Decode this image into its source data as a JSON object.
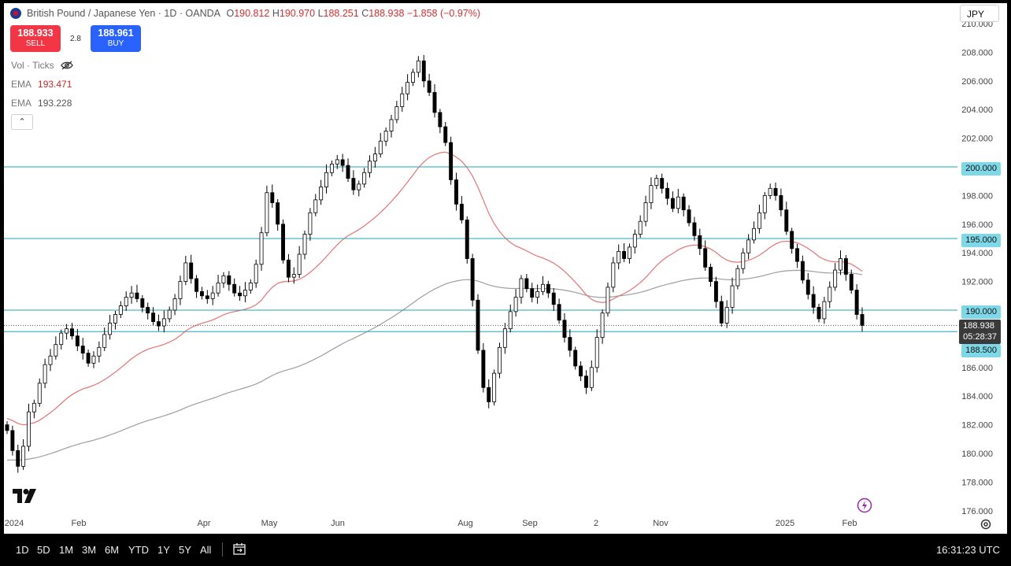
{
  "header": {
    "symbol_title": "British Pound / Japanese Yen · 1D · OANDA",
    "open_label": "O",
    "open": "190.812",
    "high_label": "H",
    "high": "190.970",
    "low_label": "L",
    "low": "188.251",
    "close_label": "C",
    "close": "188.938",
    "change": "−1.858 (−0.97%)"
  },
  "trade": {
    "sell_price": "188.933",
    "sell_label": "SELL",
    "spread": "2.8",
    "buy_price": "188.961",
    "buy_label": "BUY"
  },
  "indicators": {
    "vol_label": "Vol · Ticks",
    "ema1_label": "EMA",
    "ema1_value": "193.471",
    "ema2_label": "EMA",
    "ema2_value": "193.228"
  },
  "currency": "JPY",
  "price_tags": {
    "level_200": "200.000",
    "level_195": "195.000",
    "level_190": "190.000",
    "current_price": "188.938",
    "countdown": "05:28:37",
    "level_1885": "188.500"
  },
  "bottom_bar": {
    "ranges": [
      "1D",
      "5D",
      "1M",
      "3M",
      "6M",
      "YTD",
      "1Y",
      "5Y",
      "All"
    ],
    "time": "16:31:23 UTC"
  },
  "colors": {
    "up_candle": "#ffffff",
    "down_candle": "#000000",
    "ema_fast": "#e57373",
    "ema_slow": "#9e9e9e",
    "level_line": "#22a4b8",
    "sell": "#f23645",
    "buy": "#2962ff"
  },
  "chart_data": {
    "type": "candlestick",
    "y_axis_ticks": [
      "176.000",
      "178.000",
      "180.000",
      "182.000",
      "184.000",
      "186.000",
      "188.000",
      "190.000",
      "192.000",
      "194.000",
      "196.000",
      "198.000",
      "200.000",
      "202.000",
      "204.000",
      "206.000",
      "208.000",
      "210.000"
    ],
    "x_axis_labels": [
      "2024",
      "Feb",
      "Apr",
      "May",
      "Jun",
      "Aug",
      "Sep",
      "2",
      "Nov",
      "2025",
      "Feb"
    ],
    "ylim": [
      175,
      210.5
    ],
    "horizontal_levels": [
      200.0,
      195.0,
      190.0,
      188.5
    ],
    "current_price": 188.938,
    "close_series": [
      181.6,
      180.2,
      179.1,
      180.5,
      182.9,
      183.5,
      184.9,
      186.2,
      186.8,
      187.6,
      188.4,
      188.7,
      188.2,
      187.5,
      187.0,
      186.3,
      186.8,
      187.4,
      188.3,
      189.1,
      189.7,
      190.3,
      190.9,
      191.2,
      190.8,
      190.2,
      189.8,
      189.2,
      188.9,
      189.4,
      190.0,
      190.8,
      192.0,
      193.3,
      192.2,
      191.3,
      191.0,
      190.8,
      191.2,
      191.9,
      192.4,
      191.8,
      191.2,
      191.0,
      191.4,
      191.9,
      193.2,
      195.4,
      198.2,
      197.5,
      196.0,
      193.5,
      192.3,
      192.5,
      193.9,
      195.3,
      196.8,
      197.7,
      198.6,
      199.6,
      200.2,
      200.5,
      200.1,
      199.2,
      198.4,
      198.8,
      199.6,
      200.4,
      200.9,
      201.8,
      202.5,
      203.3,
      204.2,
      205.1,
      205.9,
      206.6,
      207.4,
      206.0,
      205.2,
      203.8,
      202.8,
      201.7,
      199.1,
      197.4,
      196.3,
      193.6,
      190.7,
      187.2,
      184.6,
      183.6,
      185.6,
      187.4,
      188.7,
      189.9,
      190.9,
      192.2,
      191.5,
      190.9,
      191.3,
      191.8,
      191.2,
      190.4,
      189.3,
      188.1,
      187.2,
      186.1,
      185.4,
      184.6,
      186.0,
      188.1,
      189.8,
      191.6,
      193.3,
      194.1,
      193.6,
      194.4,
      195.3,
      196.2,
      197.5,
      198.7,
      199.2,
      198.5,
      197.8,
      197.1,
      197.9,
      197.0,
      196.1,
      195.2,
      194.3,
      193.0,
      192.0,
      190.6,
      189.1,
      190.2,
      191.7,
      192.9,
      194.0,
      194.9,
      195.7,
      196.8,
      198.0,
      198.5,
      198.0,
      197.0,
      195.5,
      194.3,
      193.4,
      192.1,
      191.1,
      190.2,
      189.4,
      190.6,
      191.6,
      192.8,
      193.6,
      192.5,
      191.4,
      189.7,
      188.938
    ],
    "ema_fast_values_estimated": "~193.471 (last)",
    "ema_slow_values_estimated": "~193.228 (last)"
  }
}
